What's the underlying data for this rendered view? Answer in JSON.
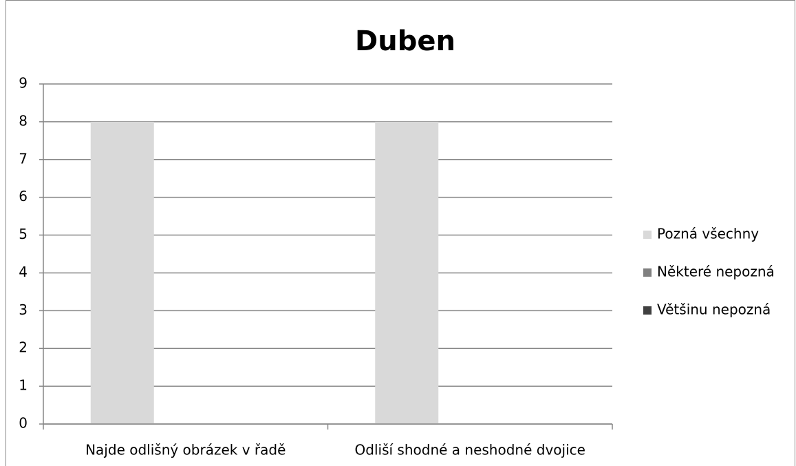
{
  "chart_data": {
    "type": "bar",
    "title": "Duben",
    "categories": [
      "Najde odlišný obrázek v řadě",
      "Odliší shodné a neshodné dvojice"
    ],
    "series": [
      {
        "name": "Pozná všechny",
        "color": "#d9d9d9",
        "values": [
          8,
          8
        ]
      },
      {
        "name": "Některé nepozná",
        "color": "#808080",
        "values": [
          0,
          0
        ]
      },
      {
        "name": "Většinu nepozná",
        "color": "#404040",
        "values": [
          0,
          0
        ]
      }
    ],
    "ylim": [
      0,
      9
    ],
    "yticks": [
      0,
      1,
      2,
      3,
      4,
      5,
      6,
      7,
      8,
      9
    ],
    "grid": true,
    "legend": "right"
  }
}
